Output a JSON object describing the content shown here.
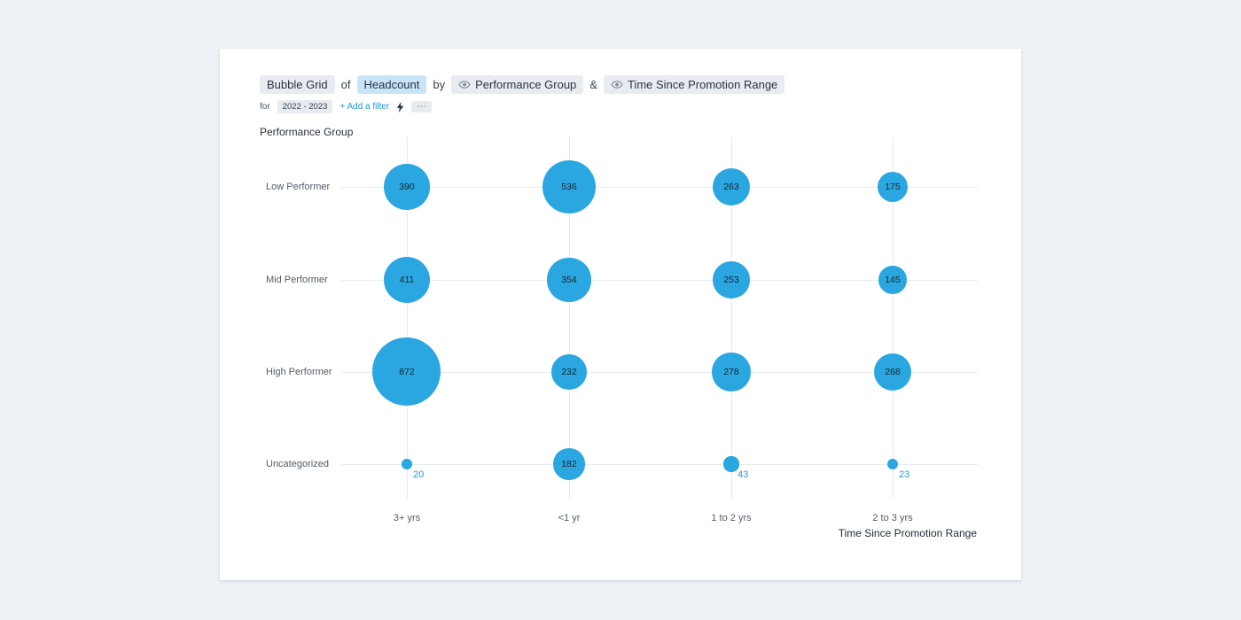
{
  "header": {
    "line1": {
      "viz_type": "Bubble Grid",
      "of": "of",
      "metric": "Headcount",
      "by": "by",
      "group1": "Performance Group",
      "amp": "&",
      "group2": "Time Since Promotion Range"
    },
    "line2": {
      "for": "for",
      "time_range": "2022 - 2023",
      "add_filter": "+ Add a filter",
      "more": "⋯"
    }
  },
  "chart_data": {
    "type": "bubble-grid",
    "y_axis_label": "Performance Group",
    "x_axis_label": "Time Since Promotion Range",
    "rows": [
      "Low Performer",
      "Mid Performer",
      "High Performer",
      "Uncategorized"
    ],
    "columns": [
      "3+ yrs",
      "<1 yr",
      "1 to 2 yrs",
      "2 to 3 yrs"
    ],
    "values": [
      [
        390,
        536,
        263,
        175
      ],
      [
        411,
        354,
        253,
        145
      ],
      [
        872,
        232,
        278,
        268
      ],
      [
        20,
        182,
        43,
        23
      ]
    ],
    "bubble_color": "#2aa7e0",
    "outside_label_color": "#2196d9"
  }
}
